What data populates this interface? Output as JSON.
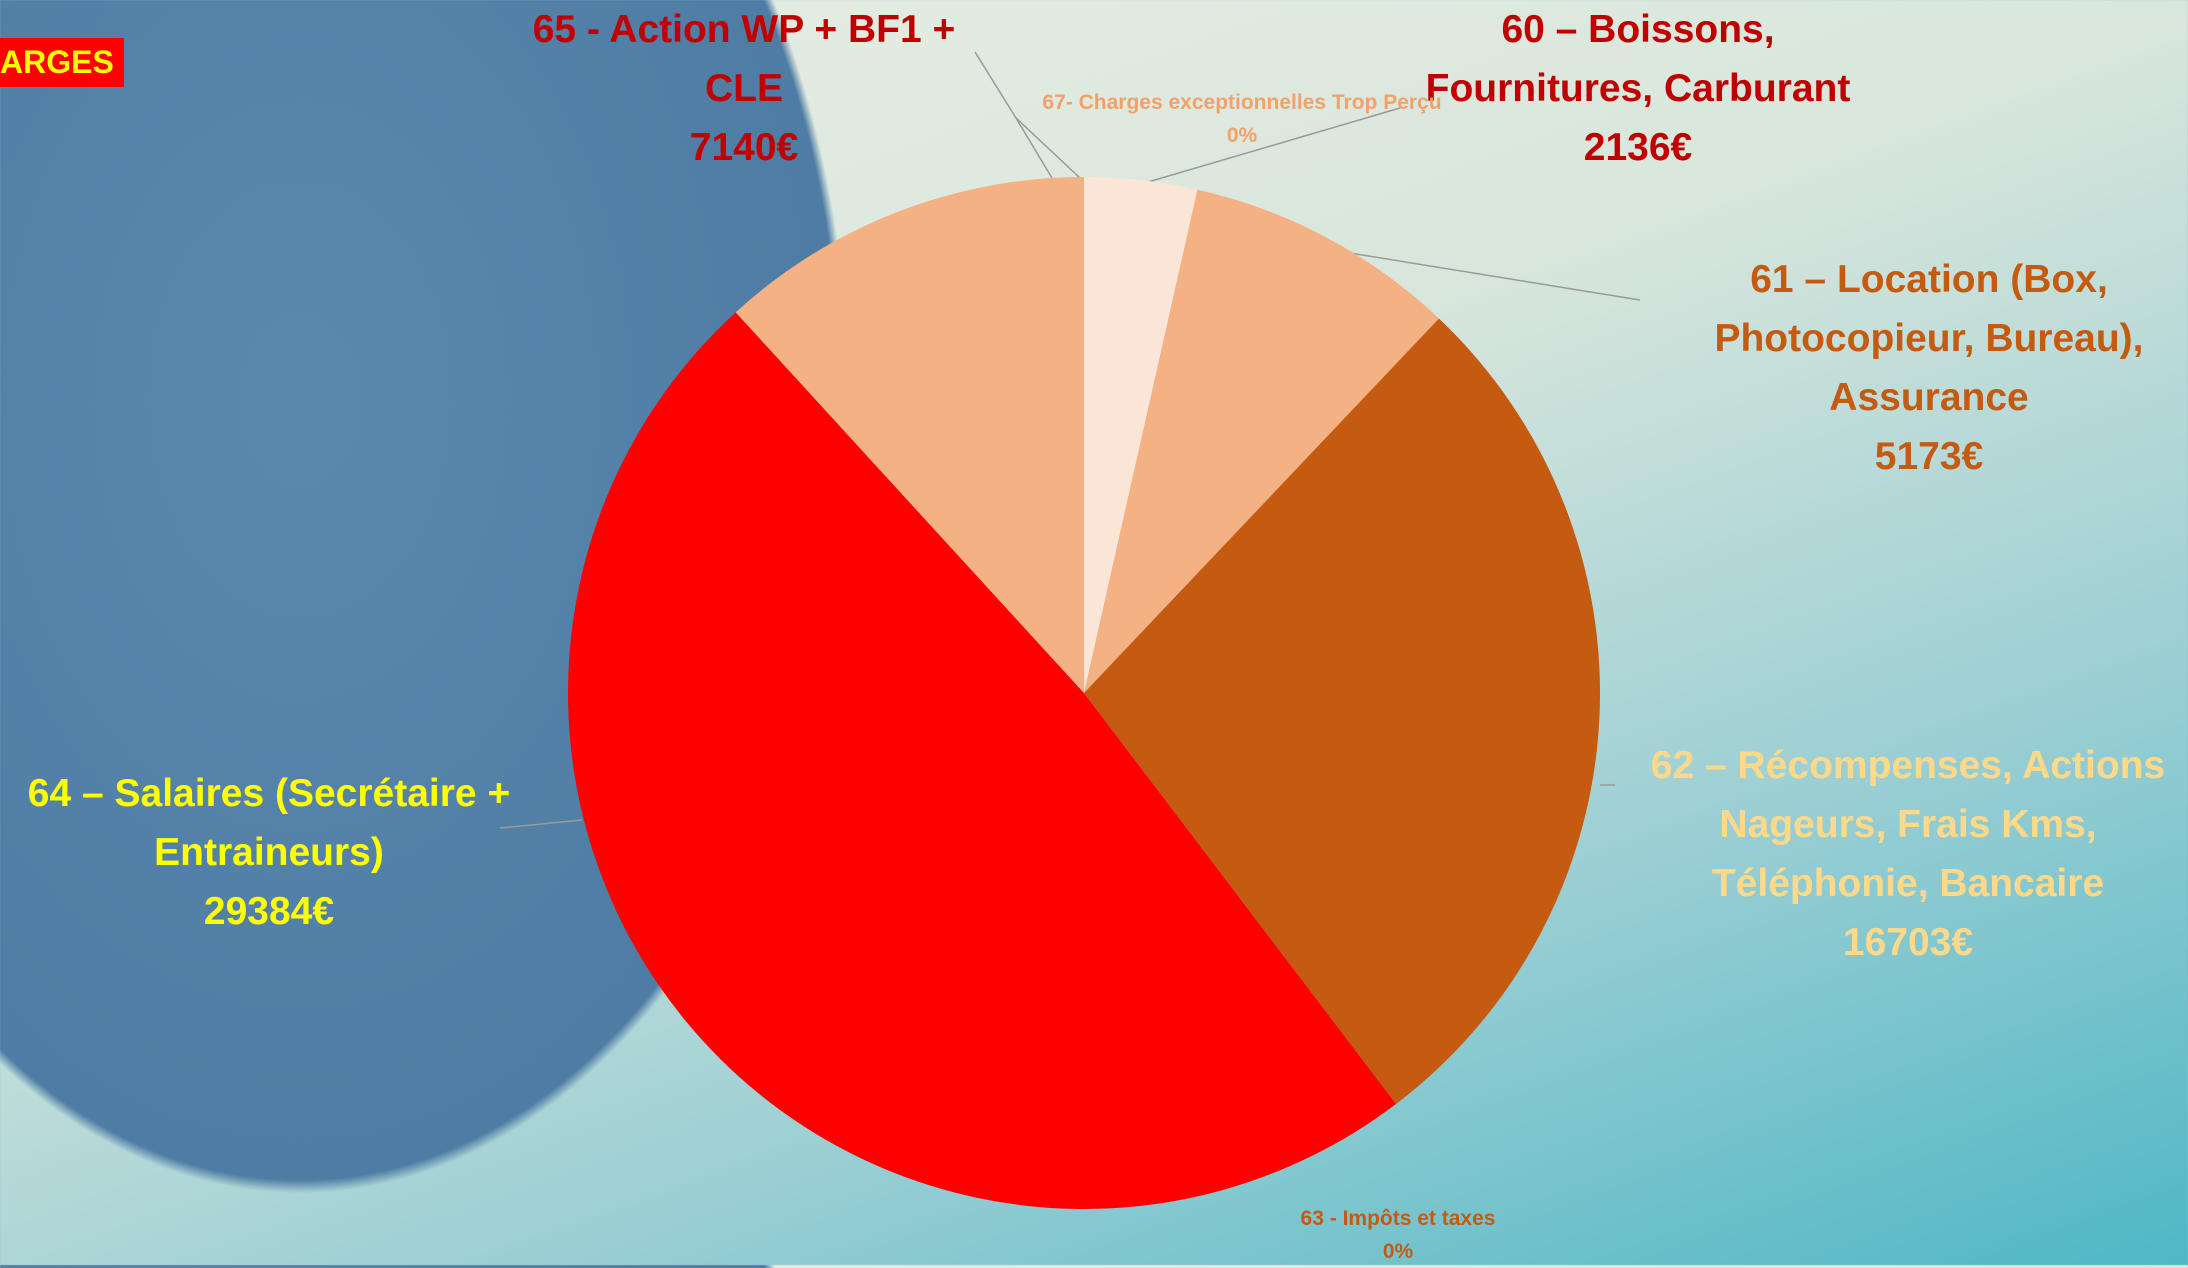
{
  "chart_data": {
    "type": "pie",
    "title": "ARGES",
    "categories": [
      "60 – Boissons, Fournitures, Carburant",
      "61 – Location (Box, Photocopieur, Bureau), Assurance",
      "62 – Récompenses, Actions Nageurs, Frais Kms, Téléphonie, Bancaire",
      "63 - Impôts et taxes",
      "64 – Salaires (Secrétaire + Entraineurs)",
      "65 - Action WP + BF1 + CLE",
      "67- Charges exceptionnelles Trop Perçu"
    ],
    "values": [
      2136,
      5173,
      16703,
      0,
      29384,
      7140,
      0
    ],
    "value_labels": [
      "2136€",
      "5173€",
      "16703€",
      "0%",
      "29384€",
      "7140€",
      "0%"
    ],
    "colors": [
      "#fbe5d6",
      "#f4b183",
      "#c55a11",
      "#843c0c",
      "#ff0000",
      "#f4b183",
      "#fbe5d6"
    ],
    "label_colors": [
      "#c00000",
      "#c55a11",
      "#ffd98a",
      "#c55a11",
      "#ffff00",
      "#c00000",
      "#f4a06a"
    ]
  }
}
